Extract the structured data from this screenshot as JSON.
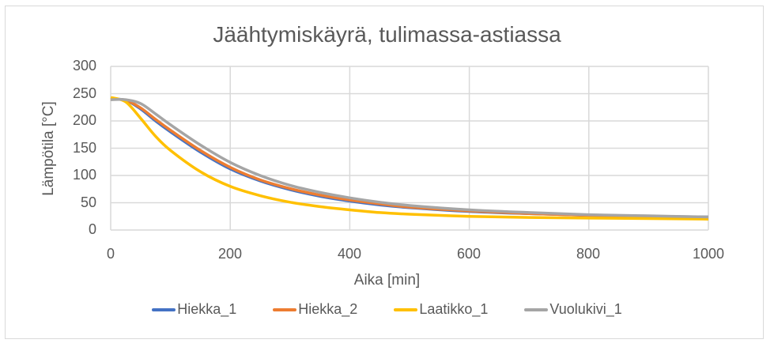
{
  "chart_data": {
    "type": "line",
    "title": "Jäähtymiskäyrä, tulimassa-astiassa",
    "xlabel": "Aika [min]",
    "ylabel": "Lämpötila [°C]",
    "xlim": [
      0,
      1000
    ],
    "ylim": [
      0,
      300
    ],
    "xticks": [
      "0",
      "200",
      "400",
      "600",
      "800",
      "1000"
    ],
    "yticks": [
      "0",
      "50",
      "100",
      "150",
      "200",
      "250",
      "300"
    ],
    "grid": true,
    "legend_position": "bottom",
    "x": [
      0,
      25,
      50,
      75,
      100,
      150,
      200,
      250,
      300,
      350,
      400,
      450,
      500,
      600,
      700,
      800,
      900,
      1000
    ],
    "series": [
      {
        "name": "Hiekka_1",
        "color": "#4472c4",
        "values": [
          240,
          238,
          222,
          200,
          180,
          143,
          112,
          90,
          74,
          62,
          53,
          46,
          41,
          34,
          30,
          27,
          25,
          24
        ]
      },
      {
        "name": "Hiekka_2",
        "color": "#ed7d31",
        "values": [
          240,
          238,
          224,
          203,
          183,
          146,
          115,
          92,
          76,
          64,
          55,
          48,
          42,
          35,
          30,
          27,
          25,
          23
        ]
      },
      {
        "name": "Laatikko_1",
        "color": "#ffc000",
        "values": [
          243,
          235,
          205,
          172,
          146,
          107,
          80,
          63,
          51,
          43,
          37,
          32,
          29,
          25,
          23,
          22,
          21,
          20
        ]
      },
      {
        "name": "Vuolukivi_1",
        "color": "#a5a5a5",
        "values": [
          239,
          239,
          232,
          213,
          193,
          156,
          124,
          100,
          82,
          69,
          59,
          51,
          45,
          37,
          32,
          28,
          26,
          24
        ]
      }
    ]
  },
  "ui": {
    "title": "Jäähtymiskäyrä, tulimassa-astiassa",
    "xlabel": "Aika [min]",
    "ylabel": "Lämpötila [°C]",
    "xticks": [
      "0",
      "200",
      "400",
      "600",
      "800",
      "1000"
    ],
    "yticks": [
      "300",
      "250",
      "200",
      "150",
      "100",
      "50",
      "0"
    ],
    "legend": [
      "Hiekka_1",
      "Hiekka_2",
      "Laatikko_1",
      "Vuolukivi_1"
    ]
  }
}
